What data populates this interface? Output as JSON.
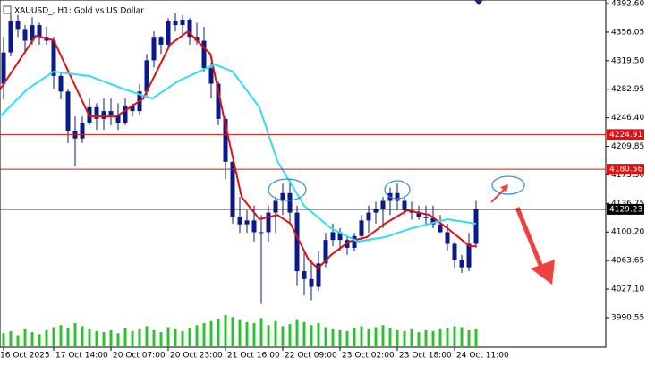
{
  "chart_data": {
    "type": "candlestick",
    "title": "XAUUSD_, H1: Gold vs US Dollar",
    "xlim": [
      -0.5,
      84.125
    ],
    "ylim": [
      3952.7,
      4397.2
    ],
    "yticks": [
      {
        "value": 4392.6,
        "label": "4392.60"
      },
      4356.05,
      {
        "value": 4319.5,
        "label": "4319.50"
      },
      4282.95,
      {
        "value": 4246.4,
        "label": "4246.40"
      },
      4209.85,
      {
        "value": 4173.3,
        "label": "4173.30"
      },
      4136.75,
      {
        "value": 4100.2,
        "label": "4100.20"
      },
      4063.65,
      {
        "value": 4027.1,
        "label": "4027.10"
      },
      3990.55
    ],
    "xticks": [
      {
        "value": 0,
        "label": "16 Oct 2025"
      },
      {
        "value": 7,
        "label": "17 Oct 14:00"
      },
      {
        "value": 15,
        "label": "20 Oct 07:00"
      },
      {
        "value": 23,
        "label": "20 Oct 23:00"
      },
      {
        "value": 31,
        "label": "21 Oct 16:00"
      },
      {
        "value": 39,
        "label": "22 Oct 09:00"
      },
      {
        "value": 47,
        "label": "23 Oct 02:00"
      },
      {
        "value": 55,
        "label": "23 Oct 18:00"
      },
      {
        "value": 63,
        "label": "24 Oct 11:00"
      }
    ],
    "candle_color": "#0a1a8c",
    "volume_color": "#2ec22e",
    "open": [
      4290,
      4330,
      4370,
      4360,
      4345,
      4365,
      4350,
      4345,
      4300,
      4280,
      4230,
      4220,
      4240,
      4260,
      4245,
      4255,
      4250,
      4240,
      4262,
      4255,
      4280,
      4320,
      4350,
      4340,
      4370,
      4365,
      4372,
      4350,
      4345,
      4310,
      4290,
      4245,
      4190,
      4120,
      4110,
      4115,
      4100,
      4100,
      4125,
      4140,
      4150,
      4125,
      4050,
      4040,
      4030,
      4060,
      4090,
      4100,
      4090,
      4080,
      4095,
      4115,
      4125,
      4130,
      4140,
      4150,
      4140,
      4128,
      4125,
      4120,
      4118,
      4110,
      4100,
      4085,
      4065,
      4055,
      4085
    ],
    "high": [
      4350,
      4380,
      4378,
      4365,
      4375,
      4368,
      4363,
      4350,
      4305,
      4283,
      4248,
      4248,
      4271,
      4265,
      4271,
      4271,
      4265,
      4271,
      4265,
      4290,
      4328,
      4357,
      4351,
      4374,
      4380,
      4378,
      4374,
      4368,
      4363,
      4317,
      4294,
      4248,
      4191,
      4145,
      4128,
      4134,
      4122,
      4134,
      4145,
      4162,
      4168,
      4134,
      4076,
      4065,
      4076,
      4099,
      4111,
      4105,
      4094,
      4099,
      4122,
      4134,
      4139,
      4145,
      4157,
      4162,
      4145,
      4139,
      4134,
      4134,
      4134,
      4122,
      4111,
      4088,
      4071,
      4099,
      4140
    ],
    "low": [
      4270,
      4325,
      4350,
      4330,
      4340,
      4340,
      4340,
      4283,
      4270,
      4214,
      4185,
      4214,
      4237,
      4231,
      4231,
      4237,
      4231,
      4237,
      4248,
      4250,
      4275,
      4311,
      4328,
      4335,
      4357,
      4352,
      4340,
      4340,
      4305,
      4271,
      4237,
      4168,
      4111,
      4099,
      4099,
      4088,
      4008,
      4088,
      4099,
      4122,
      4111,
      4031,
      4019,
      4013,
      4025,
      4055,
      4082,
      4076,
      4071,
      4076,
      4088,
      4099,
      4111,
      4105,
      4122,
      4128,
      4122,
      4116,
      4116,
      4111,
      4105,
      4099,
      4076,
      4054,
      4048,
      4050,
      4080
    ],
    "close": [
      4330,
      4370,
      4360,
      4345,
      4365,
      4350,
      4345,
      4300,
      4280,
      4230,
      4220,
      4240,
      4260,
      4245,
      4255,
      4250,
      4240,
      4262,
      4255,
      4280,
      4320,
      4350,
      4340,
      4370,
      4365,
      4372,
      4350,
      4345,
      4310,
      4290,
      4245,
      4190,
      4120,
      4110,
      4115,
      4100,
      4100,
      4125,
      4140,
      4150,
      4125,
      4050,
      4040,
      4030,
      4060,
      4090,
      4100,
      4090,
      4080,
      4095,
      4115,
      4125,
      4130,
      4140,
      4150,
      4140,
      4128,
      4125,
      4120,
      4118,
      4110,
      4100,
      4085,
      4065,
      4055,
      4085,
      4130
    ],
    "volume": [
      14,
      16,
      12,
      18,
      15,
      13,
      17,
      20,
      22,
      19,
      24,
      21,
      18,
      16,
      15,
      17,
      14,
      19,
      16,
      18,
      21,
      17,
      15,
      20,
      18,
      16,
      19,
      22,
      24,
      26,
      28,
      32,
      30,
      27,
      25,
      24,
      29,
      22,
      26,
      21,
      23,
      27,
      25,
      22,
      24,
      20,
      18,
      17,
      16,
      19,
      21,
      18,
      20,
      22,
      19,
      17,
      16,
      18,
      15,
      17,
      16,
      18,
      19,
      21,
      20,
      17,
      18
    ],
    "series": [
      {
        "color": "#e01010",
        "x": [
          -0.5,
          4.5,
          7,
          12,
          15.75,
          19.5,
          23.25,
          25.75,
          28.9,
          30.75,
          33.25,
          35.75,
          38.25,
          40.1,
          42.6,
          43.9,
          45.75,
          48.25,
          50.75,
          53.25,
          56.4,
          59.5,
          62,
          65.1,
          66
        ],
        "values": [
          4282.6,
          4351.4,
          4345.6,
          4248.3,
          4248,
          4271,
          4340,
          4357,
          4328,
          4248,
          4145,
          4116.5,
          4122,
          4110.8,
          4065,
          4053.5,
          4070.7,
          4088,
          4093.6,
          4110.8,
          4128,
          4122,
          4105,
          4082,
          4082
        ]
      },
      {
        "color": "#33ddee",
        "x": [
          -0.5,
          3.25,
          7,
          12,
          17,
          20.75,
          24.5,
          29.5,
          32,
          35.75,
          38.25,
          42,
          45.75,
          49.5,
          53.25,
          57,
          62,
          66
        ],
        "values": [
          4248,
          4282.6,
          4305.5,
          4299.8,
          4282.6,
          4271,
          4294,
          4314.7,
          4305.5,
          4259.7,
          4191,
          4133.7,
          4105,
          4088,
          4093.6,
          4105,
          4116.5,
          4110.8
        ]
      }
    ],
    "levels": [
      {
        "value": 4224.91,
        "color": "#e01010"
      },
      {
        "value": 4180.56,
        "color": "#e01010"
      },
      {
        "value": 4129.23,
        "color": "#000000"
      }
    ]
  }
}
